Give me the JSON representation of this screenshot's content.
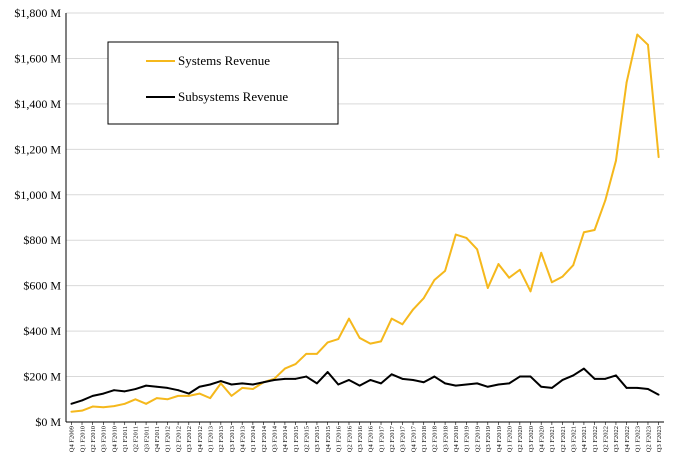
{
  "chart_data": {
    "type": "line",
    "title": "",
    "xlabel": "",
    "ylabel": "",
    "ylim": [
      0,
      1800
    ],
    "y_ticks": [
      0,
      200,
      400,
      600,
      800,
      1000,
      1200,
      1400,
      1600,
      1800
    ],
    "y_tick_labels": [
      "$0 M",
      "$200 M",
      "$400 M",
      "$600 M",
      "$800 M",
      "$1,000 M",
      "$1,200 M",
      "$1,400 M",
      "$1,600 M",
      "$1,800 M"
    ],
    "grid": "horizontal",
    "legend_position": "top-left",
    "x": [
      "Q4 F2009",
      "Q1 F2010",
      "Q2 F2010",
      "Q3 F2010",
      "Q4 F2010",
      "Q1 F2011",
      "Q2 F2011",
      "Q3 F2011",
      "Q4 F2011",
      "Q1 F2012",
      "Q2 F2012",
      "Q3 F2012",
      "Q4 F2012",
      "Q1 F2013",
      "Q2 F2013",
      "Q3 F2013",
      "Q4 F2013",
      "Q1 F2014",
      "Q2 F2014",
      "Q3 F2014",
      "Q4 F2014",
      "Q1 F2015",
      "Q2 F2015",
      "Q3 F2015",
      "Q4 F2015",
      "Q1 F2016",
      "Q2 F2016",
      "Q3 F2016",
      "Q4 F2016",
      "Q1 F2017",
      "Q2 F2017",
      "Q3 F2017",
      "Q4 F2017",
      "Q1 F2018",
      "Q2 F2018",
      "Q3 F2018",
      "Q4 F2018",
      "Q1 F2019",
      "Q2 F2019",
      "Q3 F2019",
      "Q4 F2019",
      "Q1 F2020",
      "Q2 F2020",
      "Q3 F2020",
      "Q4 F2020",
      "Q1 F2021",
      "Q2 F2021",
      "Q3 F2021",
      "Q4 F2021",
      "Q1 F2022",
      "Q2 F2022",
      "Q3 F2022",
      "Q4 F2022",
      "Q1 F2023",
      "Q2 F2023",
      "Q3 F2023"
    ],
    "series": [
      {
        "name": "Systems Revenue",
        "color": "#F5B81C",
        "values": [
          45,
          50,
          68,
          65,
          70,
          80,
          100,
          80,
          105,
          100,
          115,
          115,
          125,
          105,
          170,
          115,
          150,
          145,
          175,
          190,
          235,
          255,
          300,
          300,
          350,
          365,
          455,
          370,
          345,
          355,
          455,
          430,
          495,
          545,
          625,
          665,
          825,
          810,
          760,
          590,
          695,
          635,
          670,
          575,
          745,
          615,
          640,
          690,
          835,
          845,
          975,
          1150,
          1495,
          1705,
          1660,
          1165
        ]
      },
      {
        "name": "Subsystems Revenue",
        "color": "#000000",
        "values": [
          80,
          95,
          115,
          125,
          140,
          135,
          145,
          160,
          155,
          150,
          140,
          125,
          155,
          165,
          180,
          165,
          170,
          165,
          175,
          185,
          190,
          190,
          200,
          170,
          220,
          165,
          185,
          160,
          185,
          170,
          210,
          190,
          185,
          175,
          200,
          170,
          160,
          165,
          170,
          155,
          165,
          170,
          200,
          200,
          155,
          150,
          185,
          205,
          235,
          190,
          190,
          205,
          150,
          150,
          145,
          120
        ]
      }
    ]
  }
}
